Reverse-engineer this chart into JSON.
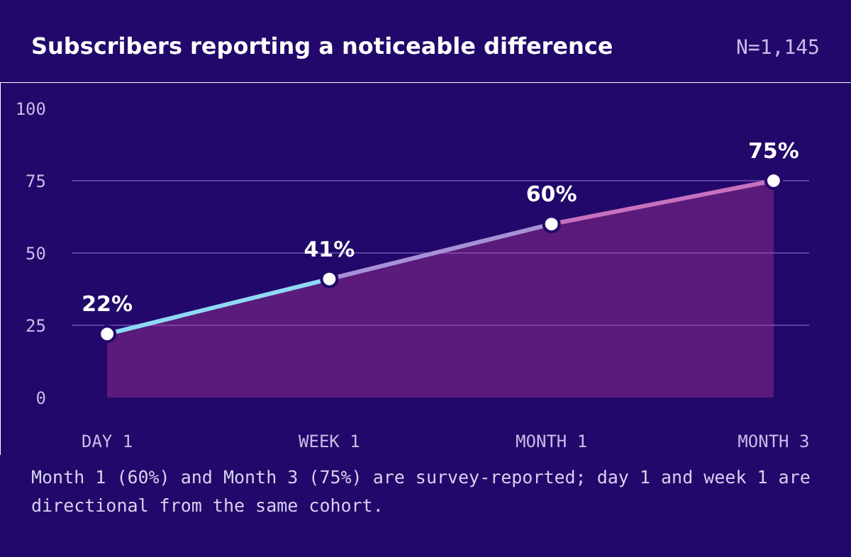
{
  "chart_data": {
    "type": "area",
    "title": "Subscribers reporting a noticeable difference",
    "subtitle": "N=1,145",
    "categories": [
      "DAY 1",
      "WEEK 1",
      "MONTH 1",
      "MONTH 3"
    ],
    "series": [
      {
        "color": "#c2409a",
        "colors": [
          "#8fd8f5",
          "#a890d8",
          "#c870c0",
          "#e8408a"
        ],
        "values": [
          22,
          41,
          60,
          75
        ],
        "value_labels": [
          "22%",
          "41%",
          "60%",
          "75%"
        ]
      }
    ],
    "ylim": [
      0,
      100
    ],
    "yticks": [
      0,
      25,
      50,
      75,
      100
    ],
    "grid": "y",
    "marker": "circle",
    "annotations": [
      "Month 1 (60%) and Month 3 (75%) are survey-reported; day 1 and week 1 are directional from the same cohort."
    ]
  }
}
